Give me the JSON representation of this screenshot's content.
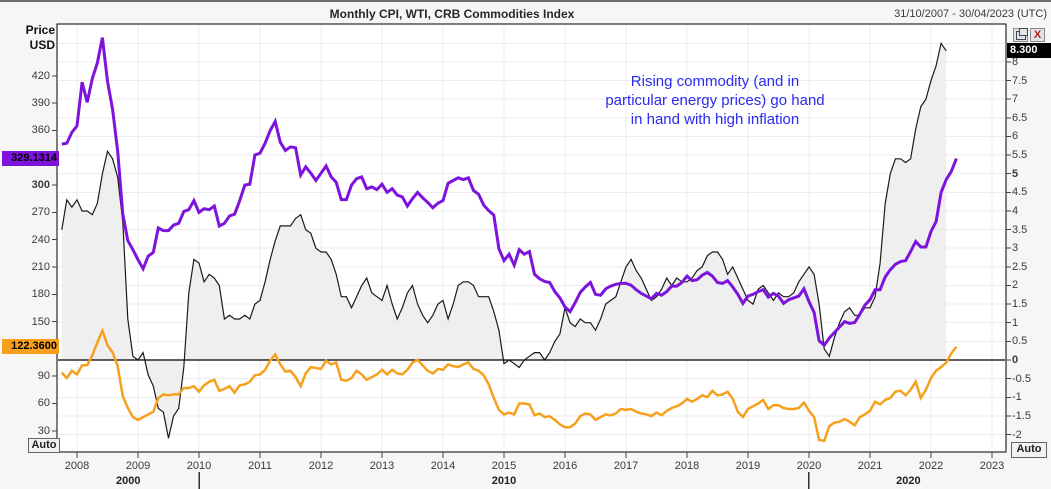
{
  "window": {
    "title": "Monthly CPI, WTI, CRB Commodities Index",
    "date_range": "31/10/2007 - 30/04/2023 (UTC)",
    "icons": [
      "restore-icon",
      "close-icon"
    ],
    "close_glyph": "X"
  },
  "left_scale": {
    "header_line1": "Price",
    "header_line2": "USD",
    "ticks": [
      420,
      390,
      360,
      330,
      300,
      270,
      240,
      210,
      180,
      150,
      120,
      90,
      60,
      30
    ],
    "bold_ticks": [
      300
    ],
    "auto_label": "Auto",
    "badges": [
      {
        "series": "CRB Commodities Index",
        "value": "329.1314",
        "value_num": 329.1314,
        "bg": "#7e14dc",
        "text_color": "#000000"
      },
      {
        "series": "WTI",
        "value": "122.3600",
        "value_num": 122.36,
        "bg": "#f6a01e",
        "text_color": "#000000"
      }
    ]
  },
  "right_scale": {
    "ticks": [
      8,
      7.5,
      7,
      6.5,
      6,
      5.5,
      5,
      4.5,
      4,
      3.5,
      3,
      2.5,
      2,
      1.5,
      1,
      0.5,
      0,
      -0.5,
      -1,
      -1.5,
      -2
    ],
    "bold_ticks": [
      5,
      0
    ],
    "auto_label": "Auto",
    "badge": {
      "series": "CPI",
      "value": "8.300",
      "value_num": 8.3,
      "bg": "#000000",
      "text_color": "#ffffff"
    }
  },
  "time_scale": {
    "years": [
      2008,
      2009,
      2010,
      2011,
      2012,
      2013,
      2014,
      2015,
      2016,
      2017,
      2018,
      2019,
      2020,
      2021,
      2022,
      2023
    ],
    "decades": [
      {
        "label": "2000",
        "t": 2008.84
      },
      {
        "label": "2010",
        "t": 2015.0
      },
      {
        "label": "2020",
        "t": 2021.63
      }
    ],
    "decade_boundaries": [
      2010,
      2020
    ]
  },
  "annotation": {
    "lines": [
      "Rising commodity (and in",
      "particular energy prices) go hand",
      "in hand with high inflation"
    ],
    "color": "#2b2bf0"
  },
  "chart_data": {
    "type": "line",
    "title": "Monthly CPI, WTI, CRB Commodities Index",
    "x_start": "2007-10",
    "frequency": "monthly",
    "x_range_years": [
      2007.672,
      2023.23
    ],
    "left_axis": {
      "label": "Price USD",
      "range": [
        6.7,
        477.0
      ],
      "grid": false
    },
    "right_axis": {
      "label": "CPI %",
      "range": [
        -2.469,
        9.018
      ],
      "grid_step": 0.5,
      "zero_line": true
    },
    "legend": "none",
    "series": [
      {
        "name": "CPI YoY %",
        "color": "#1a1a1a",
        "width": 1.2,
        "axis": "right",
        "fill_to_zero": "#ececec",
        "last_value": 8.3,
        "values": [
          3.5,
          4.3,
          4.1,
          4.3,
          4.0,
          4.0,
          3.9,
          4.2,
          5.0,
          5.6,
          5.4,
          4.9,
          3.7,
          1.1,
          0.1,
          0.0,
          0.2,
          -0.4,
          -0.7,
          -1.3,
          -1.4,
          -2.1,
          -1.5,
          -1.3,
          -0.2,
          1.8,
          2.7,
          2.6,
          2.1,
          2.3,
          2.2,
          2.0,
          1.1,
          1.2,
          1.1,
          1.1,
          1.2,
          1.1,
          1.5,
          1.6,
          2.1,
          2.7,
          3.2,
          3.6,
          3.6,
          3.6,
          3.8,
          3.9,
          3.5,
          3.4,
          3.0,
          2.9,
          2.9,
          2.7,
          2.3,
          1.7,
          1.7,
          1.4,
          1.7,
          2.0,
          2.2,
          1.8,
          1.7,
          1.6,
          2.0,
          1.5,
          1.1,
          1.4,
          1.8,
          2.0,
          1.5,
          1.2,
          1.0,
          1.2,
          1.5,
          1.6,
          1.1,
          1.5,
          2.0,
          2.1,
          2.1,
          2.0,
          1.7,
          1.7,
          1.7,
          1.3,
          0.8,
          -0.1,
          0.0,
          -0.1,
          -0.2,
          0.0,
          0.1,
          0.2,
          0.2,
          0.0,
          0.2,
          0.5,
          0.7,
          1.4,
          1.0,
          0.9,
          1.1,
          1.0,
          1.0,
          0.8,
          1.1,
          1.5,
          1.6,
          1.7,
          2.1,
          2.5,
          2.7,
          2.4,
          2.2,
          1.9,
          1.6,
          1.7,
          1.9,
          2.2,
          2.0,
          2.2,
          2.1,
          2.1,
          2.2,
          2.4,
          2.5,
          2.8,
          2.9,
          2.9,
          2.7,
          2.3,
          2.5,
          2.2,
          1.9,
          1.6,
          1.5,
          1.9,
          2.0,
          1.8,
          1.6,
          1.8,
          1.7,
          1.7,
          1.8,
          2.1,
          2.3,
          2.5,
          2.3,
          1.5,
          0.3,
          0.1,
          0.6,
          1.0,
          1.3,
          1.4,
          1.2,
          1.2,
          1.4,
          1.4,
          1.7,
          2.6,
          4.2,
          5.0,
          5.4,
          5.4,
          5.3,
          5.4,
          6.2,
          6.8,
          7.0,
          7.5,
          7.9,
          8.5,
          8.3
        ]
      },
      {
        "name": "CRB Commodities Index",
        "color": "#7e14dc",
        "width": 3,
        "axis": "left",
        "last_value": 329.1314,
        "values": [
          345,
          346,
          358,
          365,
          413,
          391,
          417,
          434,
          462,
          414,
          383,
          337,
          268,
          239,
          229,
          218,
          208,
          222,
          226,
          253,
          250,
          250,
          256,
          258,
          271,
          273,
          283,
          270,
          274,
          273,
          277,
          255,
          258,
          266,
          268,
          283,
          300,
          301,
          333,
          335,
          346,
          360,
          370,
          347,
          338,
          342,
          341,
          311,
          320,
          313,
          305,
          313,
          321,
          309,
          303,
          284,
          284,
          300,
          307,
          309,
          296,
          298,
          295,
          301,
          292,
          296,
          289,
          287,
          277,
          285,
          292,
          286,
          281,
          275,
          280,
          283,
          302,
          305,
          308,
          306,
          308,
          294,
          290,
          278,
          272,
          267,
          230,
          217,
          224,
          212,
          229,
          224,
          227,
          202,
          197,
          194,
          193,
          183,
          176,
          166,
          161,
          171,
          182,
          188,
          193,
          180,
          179,
          186,
          189,
          191,
          192,
          192,
          190,
          185,
          181,
          178,
          175,
          181,
          179,
          183,
          189,
          189,
          193,
          200,
          195,
          196,
          201,
          204,
          200,
          193,
          192,
          195,
          188,
          180,
          170,
          178,
          180,
          183,
          185,
          177,
          181,
          178,
          170,
          174,
          176,
          178,
          186,
          172,
          160,
          129,
          124,
          132,
          138,
          144,
          150,
          148,
          149,
          158,
          168,
          174,
          185,
          185,
          199,
          207,
          213,
          216,
          217,
          227,
          238,
          232,
          232,
          249,
          260,
          292,
          306,
          315,
          329.13
        ]
      },
      {
        "name": "WTI",
        "color": "#f6a01e",
        "width": 2.5,
        "axis": "left",
        "last_value": 122.36,
        "values": [
          94,
          88,
          96,
          92,
          102,
          102,
          113,
          127,
          140,
          124,
          116,
          101,
          68,
          55,
          45,
          42,
          45,
          48,
          51,
          66,
          70,
          69,
          70,
          70,
          77,
          77,
          79,
          73,
          80,
          84,
          86,
          74,
          76,
          79,
          72,
          80,
          81,
          84,
          91,
          92,
          97,
          107,
          114,
          103,
          95,
          96,
          89,
          79,
          93,
          100,
          99,
          98,
          107,
          103,
          105,
          86,
          85,
          88,
          96,
          92,
          86,
          89,
          92,
          97,
          92,
          97,
          93,
          92,
          97,
          105,
          108,
          102,
          96,
          93,
          98,
          97,
          103,
          101,
          100,
          103,
          105,
          98,
          96,
          91,
          81,
          66,
          53,
          48,
          50,
          48,
          60,
          60,
          59,
          47,
          49,
          45,
          46,
          42,
          37,
          34,
          34,
          38,
          46,
          49,
          48,
          42,
          45,
          48,
          47,
          49,
          54,
          53,
          54,
          51,
          49,
          48,
          46,
          50,
          47,
          52,
          55,
          57,
          60,
          65,
          62,
          65,
          69,
          67,
          74,
          69,
          70,
          73,
          65,
          51,
          45,
          54,
          57,
          60,
          64,
          54,
          58,
          58,
          55,
          54,
          54,
          55,
          61,
          52,
          45,
          20,
          19,
          35,
          39,
          40,
          43,
          40,
          36,
          45,
          48,
          52,
          62,
          59,
          64,
          66,
          73,
          74,
          69,
          75,
          84,
          66,
          75,
          88,
          96,
          100,
          105,
          115,
          122.36
        ]
      }
    ]
  }
}
